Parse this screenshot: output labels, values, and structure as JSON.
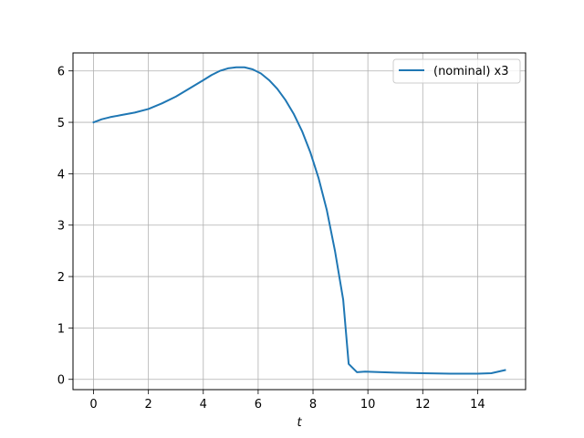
{
  "chart_data": {
    "type": "line",
    "title": "",
    "xlabel": "t",
    "ylabel": "",
    "xlim": [
      -0.75,
      15.75
    ],
    "ylim": [
      -0.2,
      6.35
    ],
    "xticks": [
      0,
      2,
      4,
      6,
      8,
      10,
      12,
      14
    ],
    "yticks": [
      0,
      1,
      2,
      3,
      4,
      5,
      6
    ],
    "grid": true,
    "legend": {
      "position": "top-right"
    },
    "series": [
      {
        "name": "(nominal) x3",
        "color": "#1f77b4",
        "x": [
          0,
          0.3,
          0.6,
          1.0,
          1.5,
          2.0,
          2.5,
          3.0,
          3.5,
          4.0,
          4.3,
          4.6,
          4.9,
          5.2,
          5.5,
          5.8,
          6.1,
          6.4,
          6.7,
          7.0,
          7.3,
          7.6,
          7.9,
          8.2,
          8.5,
          8.8,
          9.1,
          9.3,
          9.6,
          9.9,
          10.5,
          11.0,
          12.0,
          13.0,
          14.0,
          14.5,
          15.0
        ],
        "y": [
          5.0,
          5.06,
          5.1,
          5.14,
          5.19,
          5.26,
          5.37,
          5.5,
          5.66,
          5.82,
          5.92,
          6.0,
          6.05,
          6.07,
          6.07,
          6.03,
          5.95,
          5.82,
          5.65,
          5.43,
          5.16,
          4.83,
          4.42,
          3.92,
          3.3,
          2.5,
          1.55,
          0.3,
          0.14,
          0.15,
          0.14,
          0.13,
          0.12,
          0.11,
          0.11,
          0.12,
          0.18
        ]
      }
    ]
  }
}
